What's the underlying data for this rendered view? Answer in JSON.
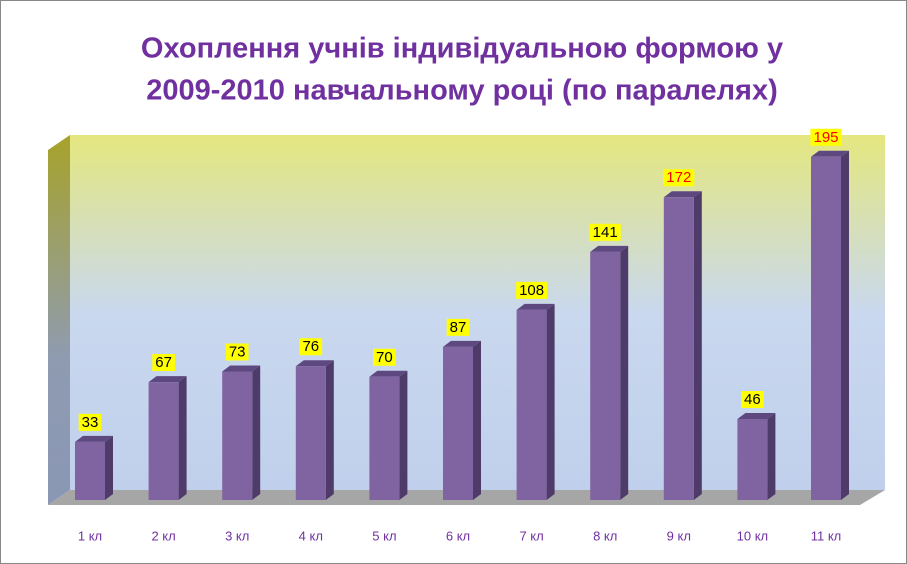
{
  "chart_data": {
    "type": "bar3d",
    "title": [
      "Охоплення учнів індивідуальною формою у",
      "2009-2010 навчальному році (по паралелях)"
    ],
    "categories": [
      "1 кл",
      "2 кл",
      "3 кл",
      "4 кл",
      "5 кл",
      "6 кл",
      "7 кл",
      "8 кл",
      "9 кл",
      "10 кл",
      "11 кл"
    ],
    "values": [
      33,
      67,
      73,
      76,
      70,
      87,
      108,
      141,
      172,
      46,
      195
    ],
    "color": "#8064a2",
    "label_colors": [
      "#000000",
      "#000000",
      "#000000",
      "#000000",
      "#000000",
      "#000000",
      "#000000",
      "#000000",
      "#ff0000",
      "#000000",
      "#ff0000"
    ]
  }
}
